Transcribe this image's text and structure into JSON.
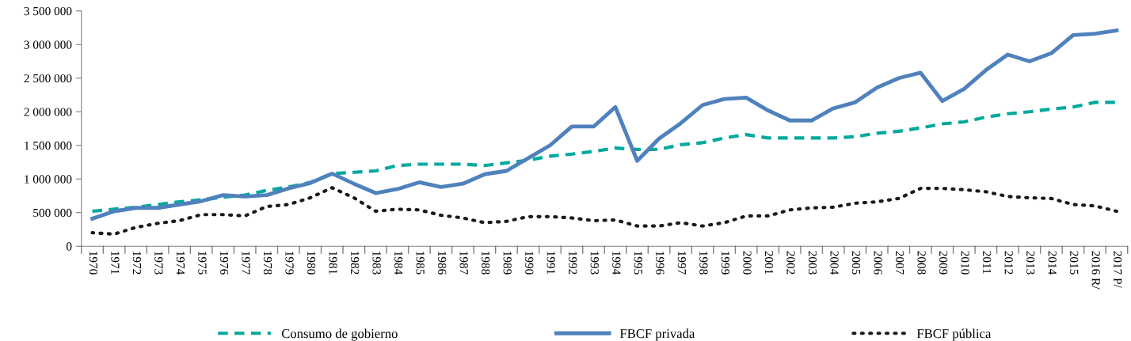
{
  "chart_data": {
    "type": "line",
    "categories": [
      "1970",
      "1971",
      "1972",
      "1973",
      "1974",
      "1975",
      "1976",
      "1977",
      "1978",
      "1979",
      "1980",
      "1981",
      "1982",
      "1983",
      "1984",
      "1985",
      "1986",
      "1987",
      "1988",
      "1989",
      "1990",
      "1991",
      "1992",
      "1993",
      "1994",
      "1995",
      "1996",
      "1997",
      "1998",
      "1999",
      "2000",
      "2001",
      "2002",
      "2003",
      "2004",
      "2005",
      "2006",
      "2007",
      "2008",
      "2009",
      "2010",
      "2011",
      "2012",
      "2013",
      "2014",
      "2015",
      "2016 R/",
      "2017 P/"
    ],
    "series": [
      {
        "name": "Consumo de gobierno",
        "color": "#00a99d",
        "line_style": "dashed",
        "values": [
          520000,
          550000,
          580000,
          620000,
          660000,
          690000,
          730000,
          760000,
          830000,
          880000,
          950000,
          1080000,
          1100000,
          1120000,
          1200000,
          1220000,
          1220000,
          1220000,
          1200000,
          1240000,
          1280000,
          1340000,
          1370000,
          1410000,
          1460000,
          1440000,
          1440000,
          1510000,
          1540000,
          1610000,
          1660000,
          1610000,
          1610000,
          1610000,
          1610000,
          1630000,
          1680000,
          1710000,
          1760000,
          1820000,
          1850000,
          1920000,
          1970000,
          2000000,
          2040000,
          2070000,
          2140000,
          2140000
        ]
      },
      {
        "name": "FBCF privada",
        "color": "#4f81bd",
        "line_style": "solid",
        "values": [
          410000,
          520000,
          570000,
          570000,
          620000,
          670000,
          760000,
          740000,
          760000,
          860000,
          940000,
          1080000,
          930000,
          790000,
          850000,
          950000,
          880000,
          930000,
          1070000,
          1120000,
          1310000,
          1500000,
          1780000,
          1780000,
          2070000,
          1270000,
          1600000,
          1830000,
          2100000,
          2190000,
          2210000,
          2020000,
          1870000,
          1870000,
          2050000,
          2140000,
          2360000,
          2500000,
          2580000,
          2160000,
          2340000,
          2620000,
          2850000,
          2750000,
          2870000,
          3140000,
          3160000,
          3210000
        ]
      },
      {
        "name": "FBCF pública",
        "color": "#1a1a1a",
        "line_style": "dotted",
        "values": [
          200000,
          180000,
          280000,
          340000,
          380000,
          470000,
          470000,
          450000,
          590000,
          620000,
          720000,
          870000,
          720000,
          520000,
          550000,
          540000,
          460000,
          420000,
          350000,
          370000,
          440000,
          440000,
          420000,
          380000,
          390000,
          300000,
          300000,
          350000,
          300000,
          350000,
          450000,
          450000,
          540000,
          570000,
          580000,
          640000,
          660000,
          710000,
          860000,
          860000,
          840000,
          810000,
          740000,
          720000,
          710000,
          620000,
          600000,
          520000
        ]
      }
    ],
    "ylim": [
      0,
      3500000
    ],
    "yticks": [
      0,
      {
        "value": 500000,
        "label": "500 000"
      },
      {
        "value": 1000000,
        "label": "1 000 000"
      },
      {
        "value": 1500000,
        "label": "1 500 000"
      },
      {
        "value": 2000000,
        "label": "2 000 000"
      },
      {
        "value": 2500000,
        "label": "2 500 000"
      },
      {
        "value": 3000000,
        "label": "3 000 000"
      },
      {
        "value": 3500000,
        "label": "3 500 000"
      }
    ],
    "grid": false,
    "legend": "bottom",
    "marker": "none"
  }
}
